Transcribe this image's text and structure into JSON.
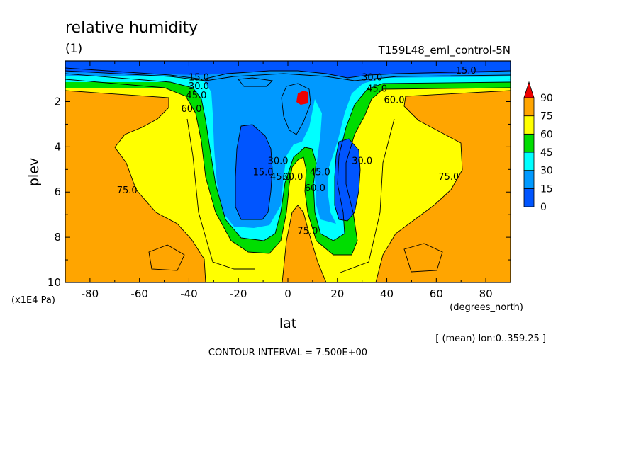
{
  "chart_data": {
    "type": "heatmap",
    "title": "relative humidity",
    "panel_label": "(1)",
    "subtitle": "T159L48_eml_control-5N",
    "xlabel": "lat",
    "xunits": "(degrees_north)",
    "ylabel": "plev",
    "yunits": "(x1E4 Pa)",
    "xlim": [
      -90,
      90
    ],
    "ylim": [
      10,
      0.2
    ],
    "xticks": [
      -80,
      -60,
      -40,
      -20,
      0,
      20,
      40,
      60,
      80
    ],
    "yticks": [
      2,
      4,
      6,
      8,
      10
    ],
    "colorbar": {
      "levels": [
        0,
        15,
        30,
        45,
        60,
        75,
        90
      ],
      "colors": [
        "#0055ff",
        "#0099ff",
        "#00ffff",
        "#00dd00",
        "#ffff00",
        "#ffa500",
        "#ee0000"
      ]
    },
    "contour_labels": [
      {
        "text": "15.0",
        "lat": -36,
        "plev": 0.9
      },
      {
        "text": "30.0",
        "lat": -36,
        "plev": 1.3
      },
      {
        "text": "45.0",
        "lat": -37,
        "plev": 1.7
      },
      {
        "text": "60.0",
        "lat": -39,
        "plev": 2.3
      },
      {
        "text": "75.0",
        "lat": -65,
        "plev": 5.9
      },
      {
        "text": "15.0",
        "lat": -10,
        "plev": 5.1
      },
      {
        "text": "30.0",
        "lat": -4,
        "plev": 4.6
      },
      {
        "text": "45.0",
        "lat": -3,
        "plev": 5.3
      },
      {
        "text": "60.0",
        "lat": 2,
        "plev": 5.3
      },
      {
        "text": "75.0",
        "lat": 8,
        "plev": 7.7
      },
      {
        "text": "45.0",
        "lat": 13,
        "plev": 5.1
      },
      {
        "text": "60.0",
        "lat": 11,
        "plev": 5.8
      },
      {
        "text": "30.0",
        "lat": 30,
        "plev": 4.6
      },
      {
        "text": "30.0",
        "lat": 34,
        "plev": 0.9
      },
      {
        "text": "45.0",
        "lat": 36,
        "plev": 1.4
      },
      {
        "text": "60.0",
        "lat": 43,
        "plev": 1.9
      },
      {
        "text": "15.0",
        "lat": 72,
        "plev": 0.6
      },
      {
        "text": "75.0",
        "lat": 65,
        "plev": 5.3
      }
    ],
    "footer_note": "[ (mean) lon:0..359.25 ]",
    "contour_interval": "CONTOUR INTERVAL = 7.500E+00"
  }
}
